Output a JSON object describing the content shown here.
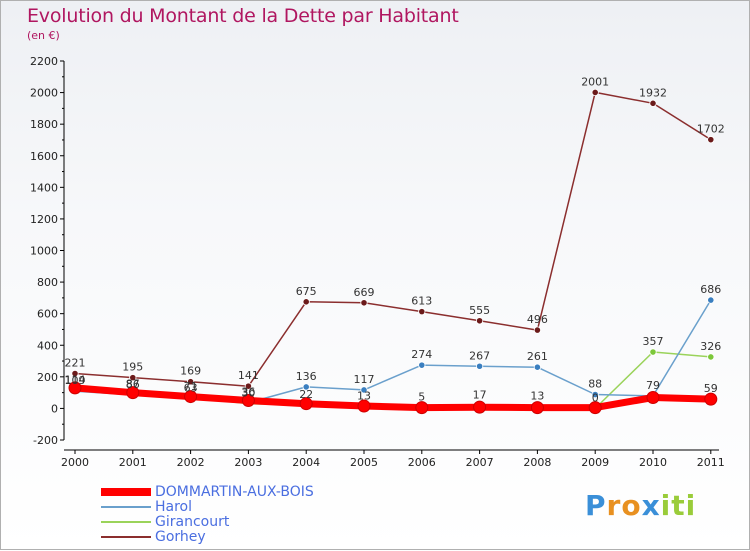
{
  "chart_data": {
    "type": "line",
    "title": "Evolution du Montant de la Dette par Habitant",
    "unit_label": "(en €)",
    "xlabel": "",
    "ylabel": "",
    "x": [
      "2000",
      "2001",
      "2002",
      "2003",
      "2004",
      "2005",
      "2006",
      "2007",
      "2008",
      "2009",
      "2010",
      "2011"
    ],
    "ylim": [
      -200,
      2200
    ],
    "yticks": [
      "-200",
      "0",
      "200",
      "400",
      "600",
      "800",
      "1000",
      "1200",
      "1400",
      "1600",
      "1800",
      "2000",
      "2200"
    ],
    "grid": false,
    "legend_position": "bottom-left",
    "series": [
      {
        "name": "DOMMARTIN-AUX-BOIS",
        "color": "#ff0000",
        "marker_color": "#ff0000",
        "values": [
          130,
          100,
          75,
          50,
          30,
          15,
          5,
          8,
          5,
          5,
          69,
          59
        ],
        "labels": [
          "",
          "",
          "",
          "",
          "",
          "",
          "",
          "",
          "",
          "",
          "",
          "59"
        ]
      },
      {
        "name": "Harol",
        "color": "#6aa0cc",
        "marker_color": "#3a7fc0",
        "values": [
          109,
          86,
          63,
          36,
          136,
          117,
          274,
          267,
          261,
          88,
          79,
          686
        ],
        "labels": [
          "109",
          "86",
          "63",
          "36",
          "136",
          "117",
          "274",
          "267",
          "261",
          "88",
          "79",
          "686"
        ]
      },
      {
        "name": "Girancourt",
        "color": "#9ad35a",
        "marker_color": "#7cc83a",
        "values": [
          114,
          87,
          71,
          30,
          22,
          13,
          5,
          17,
          13,
          0,
          357,
          326
        ],
        "labels": [
          "114",
          "87",
          "71",
          "30",
          "22",
          "13",
          "5",
          "17",
          "13",
          "0",
          "357",
          "326"
        ]
      },
      {
        "name": "Gorhey",
        "color": "#8b2e2e",
        "marker_color": "#6b1a1a",
        "values": [
          221,
          195,
          169,
          141,
          675,
          669,
          613,
          555,
          496,
          2001,
          1932,
          1702
        ],
        "labels": [
          "221",
          "195",
          "169",
          "141",
          "675",
          "669",
          "613",
          "555",
          "496",
          "2001",
          "1932",
          "1702"
        ]
      }
    ]
  },
  "logo": {
    "letters": [
      "P",
      "r",
      "o",
      "x",
      "i",
      "t",
      "i"
    ],
    "colors": [
      "#3a8fd8",
      "#e89020",
      "#e89020",
      "#3a8fd8",
      "#9acc3a",
      "#9acc3a",
      "#9acc3a"
    ]
  }
}
